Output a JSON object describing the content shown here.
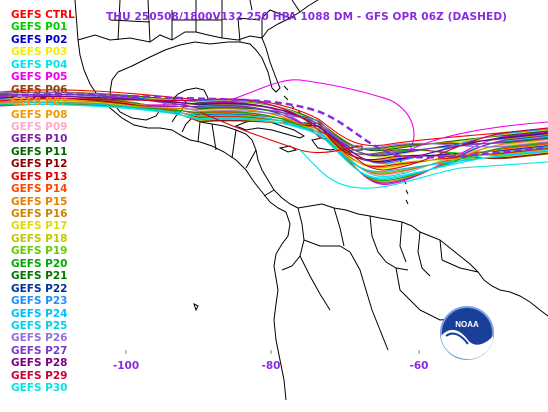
{
  "title": "THU 250508/1800V132  250 HPA 1088 DM - GFS OPR 06Z (DASHED)",
  "lon_labels": [
    "-100",
    "-80",
    "-60"
  ],
  "legend": [
    {
      "name": "GEFS CTRL",
      "color": "#ff0000"
    },
    {
      "name": "GEFS P01",
      "color": "#00cc00"
    },
    {
      "name": "GEFS P02",
      "color": "#0000cc"
    },
    {
      "name": "GEFS P03",
      "color": "#eeee00"
    },
    {
      "name": "GEFS P04",
      "color": "#00e5e5"
    },
    {
      "name": "GEFS P05",
      "color": "#ee00ee"
    },
    {
      "name": "GEFS P06",
      "color": "#8b4513"
    },
    {
      "name": "GEFS P07",
      "color": "#ff8c00"
    },
    {
      "name": "GEFS P08",
      "color": "#ee9a00"
    },
    {
      "name": "GEFS P09",
      "color": "#ffaac8"
    },
    {
      "name": "GEFS P10",
      "color": "#7b1fa2"
    },
    {
      "name": "GEFS P11",
      "color": "#006400"
    },
    {
      "name": "GEFS P12",
      "color": "#8b0000"
    },
    {
      "name": "GEFS P13",
      "color": "#e00000"
    },
    {
      "name": "GEFS P14",
      "color": "#ff4500"
    },
    {
      "name": "GEFS P15",
      "color": "#e67e00"
    },
    {
      "name": "GEFS P16",
      "color": "#cd8500"
    },
    {
      "name": "GEFS P17",
      "color": "#dddd00"
    },
    {
      "name": "GEFS P18",
      "color": "#bbcc00"
    },
    {
      "name": "GEFS P19",
      "color": "#66cc00"
    },
    {
      "name": "GEFS P20",
      "color": "#00aa00"
    },
    {
      "name": "GEFS P21",
      "color": "#007700"
    },
    {
      "name": "GEFS P22",
      "color": "#003399"
    },
    {
      "name": "GEFS P23",
      "color": "#1e90ff"
    },
    {
      "name": "GEFS P24",
      "color": "#00bfff"
    },
    {
      "name": "GEFS P25",
      "color": "#00d0ee"
    },
    {
      "name": "GEFS P26",
      "color": "#9370db"
    },
    {
      "name": "GEFS P27",
      "color": "#7a3cc8"
    },
    {
      "name": "GEFS P28",
      "color": "#800080"
    },
    {
      "name": "GEFS P29",
      "color": "#cc0033"
    },
    {
      "name": "GEFS P30",
      "color": "#00e5e5"
    }
  ],
  "opr_color": "#8a2be2",
  "coastline_color": "#000000",
  "logo_text": "NOAA"
}
